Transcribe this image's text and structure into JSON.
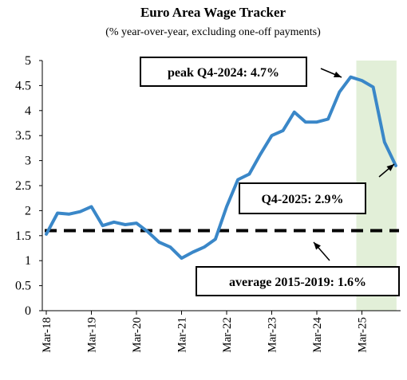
{
  "chart_data": {
    "type": "line",
    "title": "Euro Area Wage Tracker",
    "subtitle": "(% year-over-year, excluding one-off payments)",
    "xlabel": "",
    "ylabel": "",
    "ylim": [
      0,
      5
    ],
    "yticks": [
      "0",
      "0.5",
      "1",
      "1.5",
      "2",
      "2.5",
      "3",
      "3.5",
      "4",
      "4.5",
      "5"
    ],
    "xticks": [
      "Mar-18",
      "Mar-19",
      "Mar-20",
      "Mar-21",
      "Mar-22",
      "Mar-23",
      "Mar-24",
      "Mar-25"
    ],
    "grid": false,
    "series": [
      {
        "color": "#3a87c8",
        "x": [
          "Mar-18",
          "Jun-18",
          "Sep-18",
          "Dec-18",
          "Mar-19",
          "Jun-19",
          "Sep-19",
          "Dec-19",
          "Mar-20",
          "Jun-20",
          "Sep-20",
          "Dec-20",
          "Mar-21",
          "Jun-21",
          "Sep-21",
          "Dec-21",
          "Mar-22",
          "Jun-22",
          "Sep-22",
          "Dec-22",
          "Mar-23",
          "Jun-23",
          "Sep-23",
          "Dec-23",
          "Mar-24",
          "Jun-24",
          "Sep-24",
          "Dec-24",
          "Mar-25",
          "Jun-25",
          "Sep-25",
          "Dec-25"
        ],
        "values": [
          1.53,
          1.95,
          1.93,
          1.98,
          2.08,
          1.7,
          1.77,
          1.72,
          1.75,
          1.58,
          1.37,
          1.27,
          1.05,
          1.17,
          1.27,
          1.43,
          2.08,
          2.62,
          2.73,
          3.13,
          3.5,
          3.6,
          3.97,
          3.77,
          3.77,
          3.83,
          4.37,
          4.67,
          4.6,
          4.47,
          3.37,
          2.9
        ]
      }
    ],
    "reference_line": {
      "value": 1.6,
      "color": "#000000",
      "style": "dashed"
    },
    "shaded_region": {
      "from": "Mar-25",
      "to": "Dec-25",
      "color": "#e2efd8"
    },
    "annotations": [
      {
        "text": "peak Q4-2024: 4.7%"
      },
      {
        "text": "Q4-2025: 2.9%"
      },
      {
        "text": "average 2015-2019: 1.6%"
      }
    ]
  }
}
